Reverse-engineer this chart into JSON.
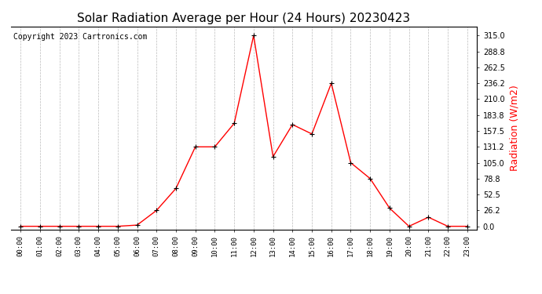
{
  "title": "Solar Radiation Average per Hour (24 Hours) 20230423",
  "copyright_text": "Copyright 2023 Cartronics.com",
  "ylabel": "Radiation (W/m2)",
  "ylabel_color": "#ff0000",
  "hours": [
    "00:00",
    "01:00",
    "02:00",
    "03:00",
    "04:00",
    "05:00",
    "06:00",
    "07:00",
    "08:00",
    "09:00",
    "10:00",
    "11:00",
    "12:00",
    "13:00",
    "14:00",
    "15:00",
    "16:00",
    "17:00",
    "18:00",
    "19:00",
    "20:00",
    "21:00",
    "22:00",
    "23:00"
  ],
  "values": [
    0.0,
    0.0,
    0.0,
    0.0,
    0.0,
    0.0,
    2.0,
    26.2,
    62.5,
    131.2,
    131.2,
    170.0,
    315.0,
    115.0,
    168.0,
    152.5,
    236.2,
    105.0,
    78.8,
    30.0,
    0.0,
    15.0,
    0.0,
    0.0
  ],
  "line_color": "#ff0000",
  "marker_color": "#000000",
  "background_color": "#ffffff",
  "grid_color": "#bbbbbb",
  "yticks": [
    0.0,
    26.2,
    52.5,
    78.8,
    105.0,
    131.2,
    157.5,
    183.8,
    210.0,
    236.2,
    262.5,
    288.8,
    315.0
  ],
  "ylim": [
    -5,
    330
  ],
  "title_fontsize": 11,
  "copyright_fontsize": 7,
  "ylabel_fontsize": 9,
  "tick_fontsize": 7,
  "xtick_fontsize": 6.5
}
